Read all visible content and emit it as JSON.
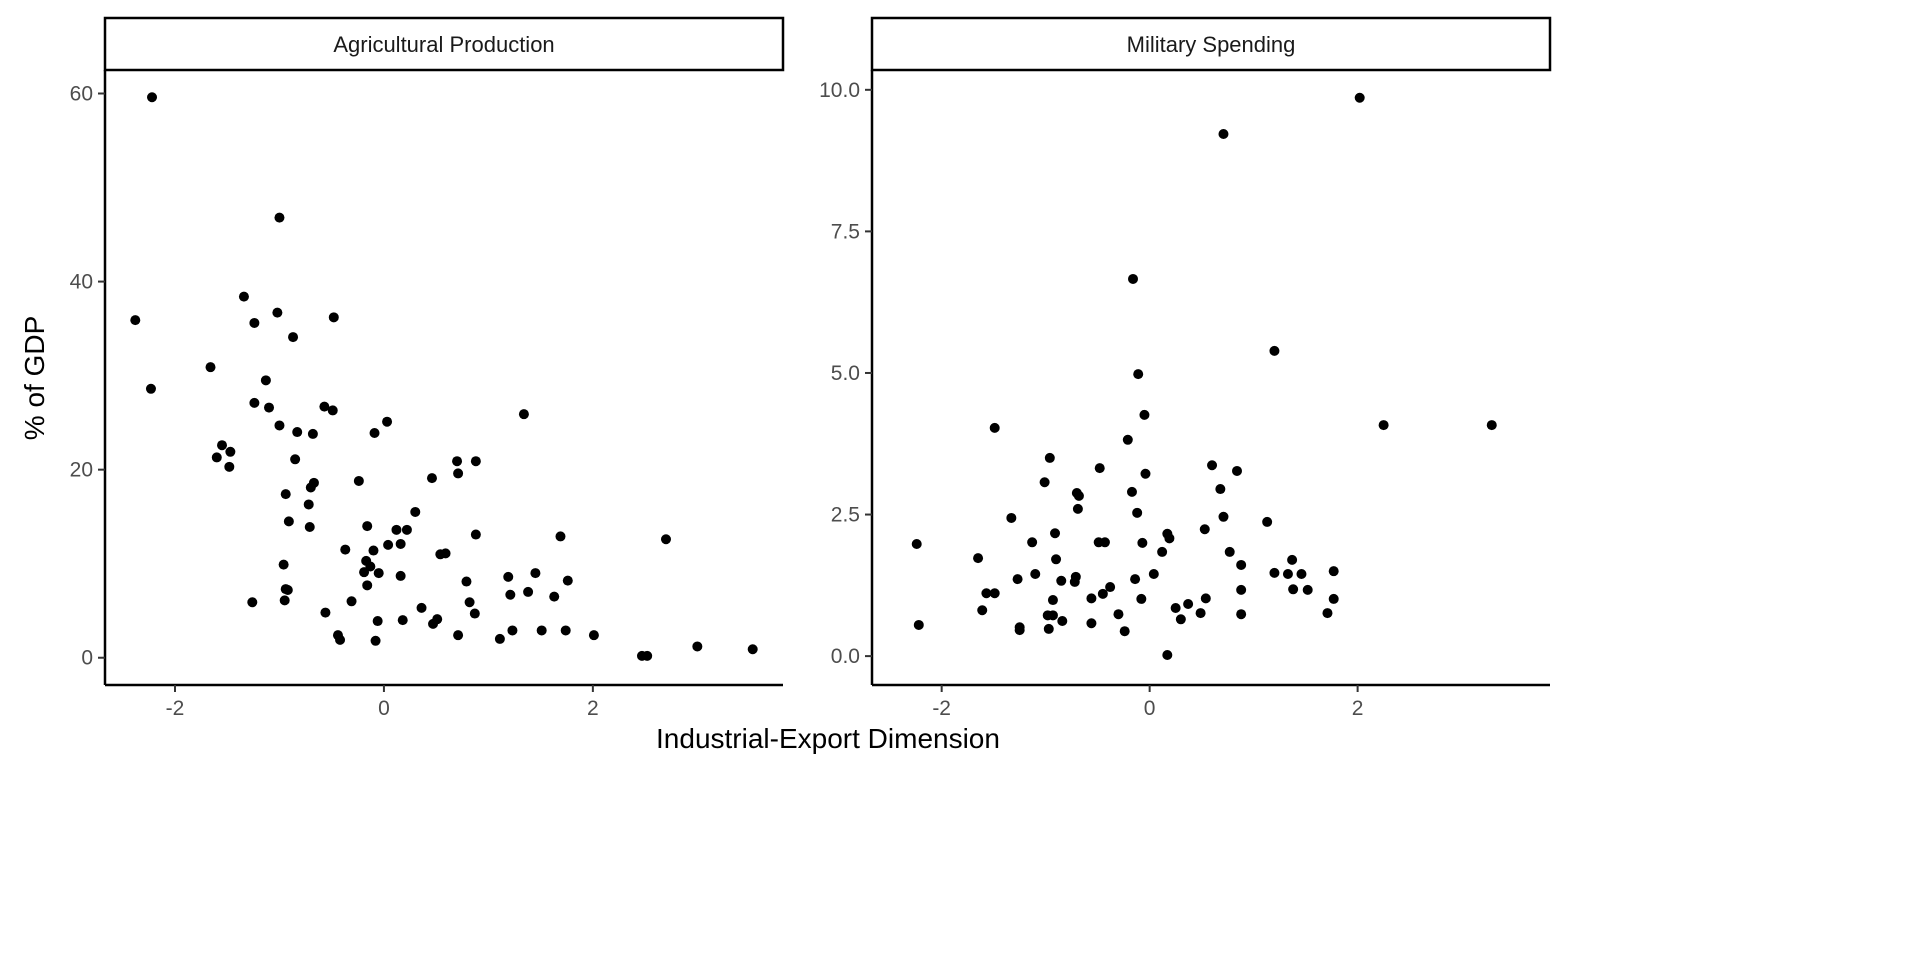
{
  "chart_data": {
    "type": "scatter",
    "ylabel": "% of GDP",
    "xlabel": "Industrial-Export Dimension",
    "grid": false,
    "panels": [
      {
        "title": "Agricultural Production",
        "xlim": [
          -2.67,
          3.82
        ],
        "ylim": [
          -2.9,
          62.5
        ],
        "xticks": [
          -2,
          0,
          2
        ],
        "xtick_labels": [
          "-2",
          "0",
          "2"
        ],
        "yticks": [
          0,
          20,
          40,
          60
        ],
        "ytick_labels": [
          "0",
          "20",
          "40",
          "60"
        ],
        "points": [
          [
            -2.22,
            59.6
          ],
          [
            -2.38,
            35.9
          ],
          [
            -2.23,
            28.6
          ],
          [
            -1.0,
            46.8
          ],
          [
            -1.34,
            38.4
          ],
          [
            -1.02,
            36.7
          ],
          [
            -1.24,
            35.6
          ],
          [
            -0.48,
            36.2
          ],
          [
            -0.87,
            34.1
          ],
          [
            -1.66,
            30.9
          ],
          [
            -1.13,
            29.5
          ],
          [
            -1.24,
            27.1
          ],
          [
            -1.1,
            26.6
          ],
          [
            -0.57,
            26.7
          ],
          [
            -0.49,
            26.3
          ],
          [
            -1.0,
            24.7
          ],
          [
            -0.83,
            24.0
          ],
          [
            -0.68,
            23.8
          ],
          [
            0.03,
            25.1
          ],
          [
            -0.09,
            23.9
          ],
          [
            1.34,
            25.9
          ],
          [
            -1.55,
            22.6
          ],
          [
            -1.47,
            21.9
          ],
          [
            -1.6,
            21.3
          ],
          [
            -1.48,
            20.3
          ],
          [
            -0.85,
            21.1
          ],
          [
            -0.67,
            18.6
          ],
          [
            -0.7,
            18.1
          ],
          [
            -0.94,
            17.4
          ],
          [
            -0.72,
            16.3
          ],
          [
            -0.24,
            18.8
          ],
          [
            0.46,
            19.1
          ],
          [
            0.7,
            20.9
          ],
          [
            0.71,
            19.6
          ],
          [
            0.88,
            20.9
          ],
          [
            0.3,
            15.5
          ],
          [
            -0.91,
            14.5
          ],
          [
            -0.71,
            13.9
          ],
          [
            -0.16,
            14.0
          ],
          [
            0.12,
            13.6
          ],
          [
            0.22,
            13.6
          ],
          [
            0.88,
            13.1
          ],
          [
            1.69,
            12.9
          ],
          [
            2.7,
            12.6
          ],
          [
            0.04,
            12.0
          ],
          [
            0.16,
            12.1
          ],
          [
            -0.37,
            11.5
          ],
          [
            -0.1,
            11.4
          ],
          [
            0.59,
            11.1
          ],
          [
            0.54,
            11.0
          ],
          [
            -0.96,
            9.9
          ],
          [
            -0.17,
            10.3
          ],
          [
            -0.13,
            9.7
          ],
          [
            -0.19,
            9.1
          ],
          [
            -0.05,
            9.0
          ],
          [
            0.16,
            8.7
          ],
          [
            1.19,
            8.6
          ],
          [
            1.45,
            9.0
          ],
          [
            1.76,
            8.2
          ],
          [
            0.79,
            8.1
          ],
          [
            -0.16,
            7.7
          ],
          [
            -0.94,
            7.3
          ],
          [
            -0.92,
            7.2
          ],
          [
            1.21,
            6.7
          ],
          [
            1.38,
            7.0
          ],
          [
            1.63,
            6.5
          ],
          [
            -1.26,
            5.9
          ],
          [
            -0.95,
            6.1
          ],
          [
            -0.31,
            6.0
          ],
          [
            0.82,
            5.9
          ],
          [
            0.87,
            4.7
          ],
          [
            -0.56,
            4.8
          ],
          [
            0.36,
            5.3
          ],
          [
            0.51,
            4.1
          ],
          [
            0.47,
            3.6
          ],
          [
            0.18,
            4.0
          ],
          [
            -0.06,
            3.9
          ],
          [
            1.23,
            2.9
          ],
          [
            1.51,
            2.9
          ],
          [
            1.74,
            2.9
          ],
          [
            0.71,
            2.4
          ],
          [
            2.01,
            2.4
          ],
          [
            -0.44,
            2.4
          ],
          [
            -0.42,
            1.9
          ],
          [
            -0.08,
            1.8
          ],
          [
            1.11,
            2.0
          ],
          [
            2.47,
            0.2
          ],
          [
            2.52,
            0.2
          ],
          [
            3.0,
            1.2
          ],
          [
            3.53,
            0.9
          ]
        ]
      },
      {
        "title": "Military Spending",
        "xlim": [
          -2.67,
          3.85
        ],
        "ylim": [
          -0.51,
          10.35
        ],
        "xticks": [
          -2,
          0,
          2
        ],
        "xtick_labels": [
          "-2",
          "0",
          "2"
        ],
        "yticks": [
          0,
          2.5,
          5,
          7.5,
          10
        ],
        "ytick_labels": [
          "0.0",
          "2.5",
          "5.0",
          "7.5",
          "10.0"
        ],
        "points": [
          [
            2.02,
            9.86
          ],
          [
            0.71,
            9.22
          ],
          [
            -0.16,
            6.66
          ],
          [
            1.2,
            5.39
          ],
          [
            -0.11,
            4.98
          ],
          [
            -0.05,
            4.26
          ],
          [
            -1.49,
            4.03
          ],
          [
            2.25,
            4.08
          ],
          [
            3.29,
            4.08
          ],
          [
            -0.21,
            3.82
          ],
          [
            -0.96,
            3.5
          ],
          [
            0.6,
            3.37
          ],
          [
            -0.48,
            3.32
          ],
          [
            0.84,
            3.27
          ],
          [
            -0.04,
            3.22
          ],
          [
            -1.01,
            3.07
          ],
          [
            0.68,
            2.95
          ],
          [
            -0.17,
            2.9
          ],
          [
            -0.7,
            2.88
          ],
          [
            -0.68,
            2.83
          ],
          [
            -0.69,
            2.6
          ],
          [
            -0.12,
            2.53
          ],
          [
            0.71,
            2.46
          ],
          [
            -1.33,
            2.44
          ],
          [
            1.13,
            2.37
          ],
          [
            0.53,
            2.24
          ],
          [
            -0.91,
            2.17
          ],
          [
            0.17,
            2.16
          ],
          [
            0.19,
            2.08
          ],
          [
            -2.24,
            1.98
          ],
          [
            -1.13,
            2.01
          ],
          [
            -0.49,
            2.01
          ],
          [
            -0.43,
            2.01
          ],
          [
            -0.07,
            2.0
          ],
          [
            0.12,
            1.84
          ],
          [
            0.77,
            1.84
          ],
          [
            -1.65,
            1.73
          ],
          [
            -0.9,
            1.71
          ],
          [
            1.37,
            1.7
          ],
          [
            0.88,
            1.61
          ],
          [
            -1.1,
            1.45
          ],
          [
            1.2,
            1.47
          ],
          [
            1.33,
            1.45
          ],
          [
            1.46,
            1.45
          ],
          [
            0.04,
            1.45
          ],
          [
            -0.71,
            1.4
          ],
          [
            -1.27,
            1.36
          ],
          [
            -0.14,
            1.36
          ],
          [
            -0.85,
            1.33
          ],
          [
            -0.72,
            1.31
          ],
          [
            1.77,
            1.5
          ],
          [
            1.52,
            1.17
          ],
          [
            1.38,
            1.18
          ],
          [
            -0.38,
            1.22
          ],
          [
            0.88,
            1.17
          ],
          [
            -1.57,
            1.11
          ],
          [
            -1.49,
            1.11
          ],
          [
            -0.45,
            1.1
          ],
          [
            -0.93,
            0.99
          ],
          [
            -0.56,
            1.02
          ],
          [
            -0.08,
            1.01
          ],
          [
            0.54,
            1.02
          ],
          [
            1.77,
            1.01
          ],
          [
            0.25,
            0.85
          ],
          [
            0.37,
            0.92
          ],
          [
            -1.61,
            0.81
          ],
          [
            -0.3,
            0.74
          ],
          [
            0.49,
            0.76
          ],
          [
            0.88,
            0.74
          ],
          [
            1.71,
            0.76
          ],
          [
            -0.98,
            0.72
          ],
          [
            -0.93,
            0.72
          ],
          [
            0.3,
            0.65
          ],
          [
            -0.84,
            0.62
          ],
          [
            -0.56,
            0.58
          ],
          [
            -2.22,
            0.55
          ],
          [
            -1.25,
            0.51
          ],
          [
            -1.25,
            0.46
          ],
          [
            -0.97,
            0.48
          ],
          [
            -0.24,
            0.44
          ],
          [
            0.17,
            0.02
          ]
        ]
      }
    ]
  }
}
